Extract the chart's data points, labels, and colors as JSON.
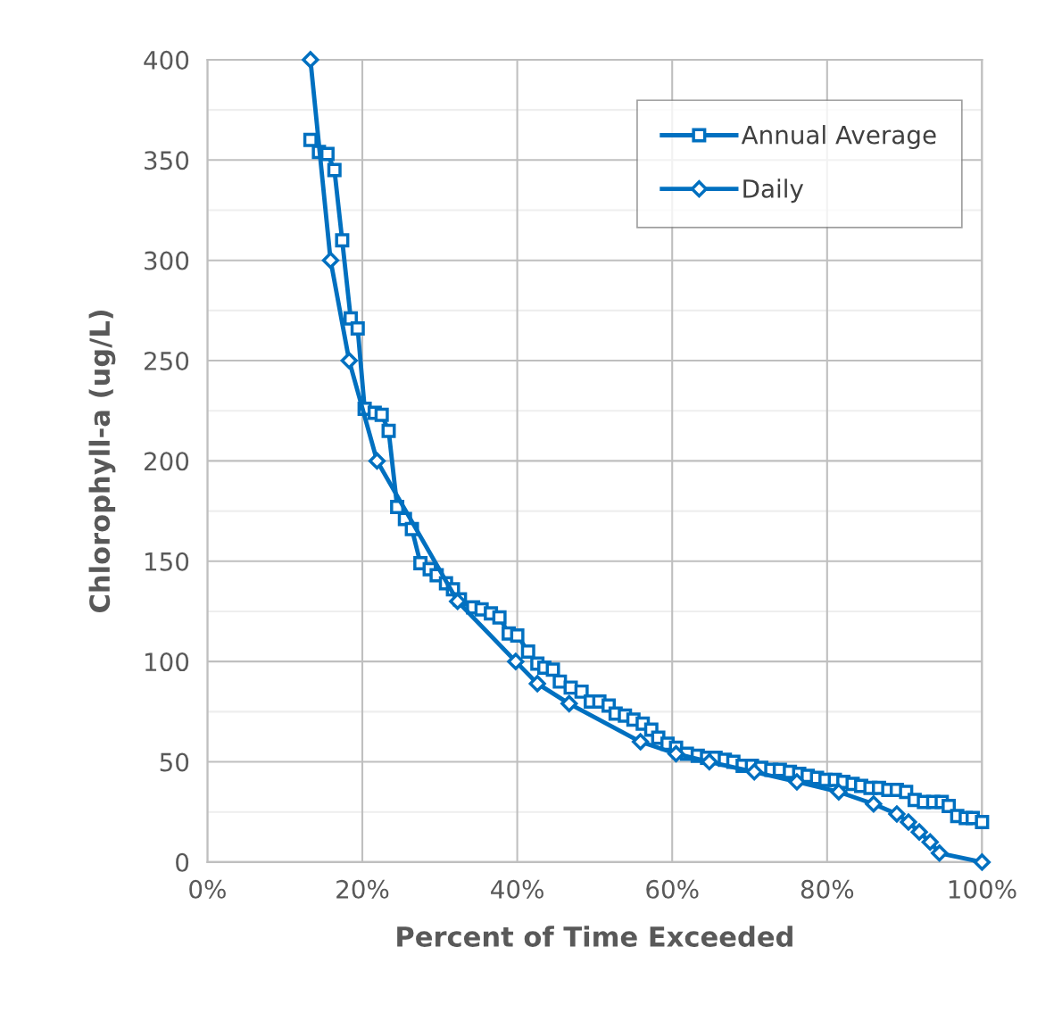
{
  "chart_data": {
    "type": "line",
    "xlabel": "Percent of Time Exceeded",
    "ylabel": "Chlorophyll-a (ug/L)",
    "xlim": [
      0,
      1
    ],
    "xticks": [
      {
        "value": 0,
        "label": "0%"
      },
      {
        "value": 0.2,
        "label": "20%"
      },
      {
        "value": 0.4,
        "label": "40%"
      },
      {
        "value": 0.6,
        "label": "60%"
      },
      {
        "value": 0.8,
        "label": "80%"
      },
      {
        "value": 1,
        "label": "100%"
      }
    ],
    "ylim": [
      0,
      400
    ],
    "yticks": [
      0,
      50,
      100,
      150,
      200,
      250,
      300,
      350,
      400
    ],
    "grid": true,
    "legend": "top right",
    "line_style": "solid",
    "series": [
      {
        "name": "Annual Average",
        "color": "#0070c0",
        "marker": "square",
        "x": [
          0.133,
          0.144,
          0.155,
          0.164,
          0.174,
          0.185,
          0.194,
          0.203,
          0.216,
          0.225,
          0.234,
          0.245,
          0.255,
          0.264,
          0.275,
          0.287,
          0.296,
          0.308,
          0.317,
          0.326,
          0.343,
          0.354,
          0.366,
          0.377,
          0.389,
          0.4,
          0.414,
          0.426,
          0.435,
          0.446,
          0.455,
          0.469,
          0.483,
          0.495,
          0.506,
          0.518,
          0.527,
          0.539,
          0.55,
          0.562,
          0.573,
          0.582,
          0.594,
          0.605,
          0.619,
          0.633,
          0.645,
          0.656,
          0.668,
          0.679,
          0.691,
          0.703,
          0.715,
          0.728,
          0.739,
          0.752,
          0.764,
          0.775,
          0.787,
          0.798,
          0.81,
          0.821,
          0.833,
          0.844,
          0.856,
          0.867,
          0.879,
          0.89,
          0.902,
          0.913,
          0.925,
          0.937,
          0.948,
          0.957,
          0.968,
          0.979,
          0.988,
          1.0
        ],
        "values": [
          360,
          354,
          353,
          345,
          310,
          271,
          266,
          226,
          224,
          223,
          215,
          177,
          171,
          166,
          149,
          146,
          143,
          139,
          136,
          131,
          127,
          126,
          124,
          122,
          114,
          113,
          105,
          99,
          97,
          96,
          90,
          87,
          85,
          80,
          80,
          78,
          74,
          73,
          71,
          69,
          66,
          62,
          59,
          57,
          54,
          53,
          52,
          52,
          51,
          50,
          48,
          48,
          47,
          46,
          46,
          45,
          44,
          43,
          42,
          41,
          41,
          40,
          39,
          38,
          37,
          37,
          36,
          36,
          35,
          31,
          30,
          30,
          30,
          28,
          23,
          22,
          22,
          20
        ]
      },
      {
        "name": "Daily",
        "color": "#0070c0",
        "marker": "diamond",
        "x": [
          0.133,
          0.159,
          0.183,
          0.219,
          0.323,
          0.398,
          0.426,
          0.467,
          0.559,
          0.605,
          0.648,
          0.706,
          0.761,
          0.815,
          0.86,
          0.89,
          0.905,
          0.919,
          0.933,
          0.945,
          1.0
        ],
        "values": [
          400,
          300,
          250,
          200,
          130,
          100,
          89,
          79,
          60,
          54,
          50,
          45,
          40,
          35,
          29,
          24,
          20,
          15,
          10,
          4.5,
          0
        ]
      }
    ]
  }
}
